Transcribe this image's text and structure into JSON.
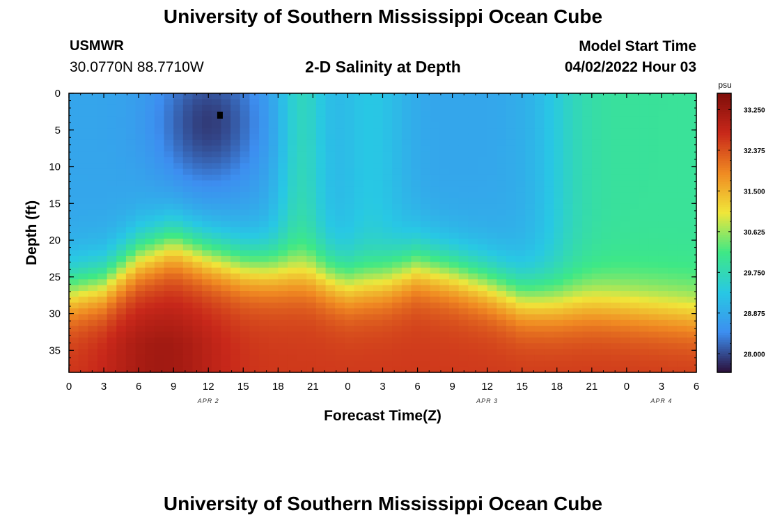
{
  "header": {
    "title": "University of Southern Mississippi Ocean Cube",
    "station": "USMWR",
    "coordinates": "30.0770N  88.7710W",
    "subtitle": "2-D Salinity at Depth",
    "model_start_label": "Model Start Time",
    "model_start_value": "04/02/2022 Hour 03"
  },
  "footer": {
    "title": "University of Southern Mississippi Ocean Cube"
  },
  "colors": {
    "low": "#2b0f3a",
    "blue": "#3d8ef0",
    "cyan": "#28c8e4",
    "green": "#3ee886",
    "yellow": "#f0e63a",
    "orange": "#f08a22",
    "red": "#c8281a",
    "high": "#7e0d0a"
  },
  "chart_data": {
    "type": "heatmap",
    "xlabel": "Forecast Time(Z)",
    "ylabel": "Depth (ft)",
    "x_range": [
      0,
      54
    ],
    "x_ticks": [
      0,
      3,
      6,
      9,
      12,
      15,
      18,
      21,
      24,
      27,
      30,
      33,
      36,
      39,
      42,
      45,
      48,
      51,
      54
    ],
    "x_tick_labels": [
      "0",
      "3",
      "6",
      "9",
      "12",
      "15",
      "18",
      "21",
      "0",
      "3",
      "6",
      "9",
      "12",
      "15",
      "18",
      "21",
      "0",
      "3",
      "6"
    ],
    "date_labels": [
      {
        "x": 12,
        "label": "APR 2"
      },
      {
        "x": 36,
        "label": "APR 3"
      },
      {
        "x": 51,
        "label": "APR 4"
      }
    ],
    "y_range": [
      0,
      38
    ],
    "y_ticks": [
      0,
      5,
      10,
      15,
      20,
      25,
      30,
      35
    ],
    "y_tick_labels": [
      "0",
      "5",
      "10",
      "15",
      "20",
      "25",
      "30",
      "35"
    ],
    "marker": {
      "x": 13,
      "y": 3
    },
    "colorbar": {
      "unit": "psu",
      "min": 27.6,
      "max": 33.6,
      "ticks": [
        28.0,
        28.875,
        29.75,
        30.625,
        31.5,
        32.375,
        33.25
      ],
      "tick_labels": [
        "28.000",
        "28.875",
        "29.750",
        "30.625",
        "31.500",
        "32.375",
        "33.250"
      ]
    },
    "interface_depth_by_hour": [
      [
        0,
        27
      ],
      [
        3,
        26
      ],
      [
        6,
        22
      ],
      [
        9,
        20
      ],
      [
        12,
        22
      ],
      [
        15,
        23.5
      ],
      [
        18,
        24
      ],
      [
        21,
        24.5
      ],
      [
        24,
        26
      ],
      [
        27,
        25.5
      ],
      [
        30,
        23.5
      ],
      [
        33,
        24.5
      ],
      [
        36,
        26
      ],
      [
        39,
        28
      ],
      [
        42,
        28.5
      ],
      [
        45,
        28.5
      ],
      [
        48,
        29
      ],
      [
        51,
        29.5
      ],
      [
        54,
        30
      ]
    ],
    "fresh_core": {
      "center_hour": 12,
      "center_depth_ft": 4,
      "min_psu": 27.9
    }
  }
}
